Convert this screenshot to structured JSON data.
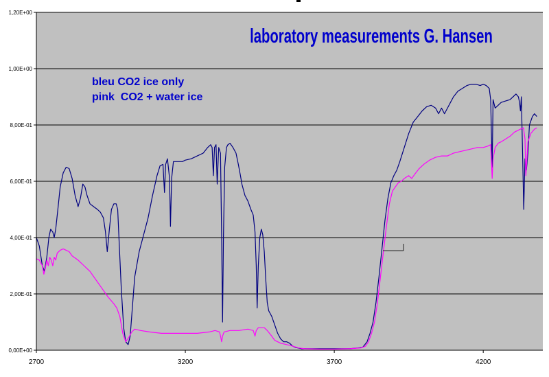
{
  "chart_data": {
    "type": "line",
    "title": "laboratory measurements G. Hansen",
    "annotations": [
      "bleu CO2 ice only",
      "pink  CO2 + water ice"
    ],
    "xlabel": "",
    "ylabel": "",
    "xlim": [
      2700,
      4400
    ],
    "ylim": [
      0,
      1.2
    ],
    "x_ticks": [
      "2700",
      "3200",
      "3700",
      "4200"
    ],
    "x_tick_values": [
      2700,
      3200,
      3700,
      4200
    ],
    "y_ticks": [
      "0,00E+00",
      "2,00E-01",
      "4,00E-01",
      "6,00E-01",
      "8,00E-01",
      "1,00E+00",
      "1,20E+00"
    ],
    "y_tick_values": [
      0,
      0.2,
      0.4,
      0.6,
      0.8,
      1.0,
      1.2
    ],
    "grid": "horizontal",
    "plot_background": "#c0c0c0",
    "series": [
      {
        "color": "#000080",
        "points": [
          [
            2700,
            0.4
          ],
          [
            2710,
            0.37
          ],
          [
            2720,
            0.3
          ],
          [
            2727,
            0.28
          ],
          [
            2735,
            0.33
          ],
          [
            2742,
            0.4
          ],
          [
            2748,
            0.43
          ],
          [
            2755,
            0.42
          ],
          [
            2760,
            0.4
          ],
          [
            2765,
            0.43
          ],
          [
            2772,
            0.5
          ],
          [
            2780,
            0.58
          ],
          [
            2790,
            0.63
          ],
          [
            2800,
            0.65
          ],
          [
            2810,
            0.645
          ],
          [
            2820,
            0.61
          ],
          [
            2830,
            0.55
          ],
          [
            2840,
            0.51
          ],
          [
            2848,
            0.54
          ],
          [
            2856,
            0.59
          ],
          [
            2863,
            0.58
          ],
          [
            2870,
            0.55
          ],
          [
            2880,
            0.52
          ],
          [
            2892,
            0.51
          ],
          [
            2905,
            0.5
          ],
          [
            2915,
            0.49
          ],
          [
            2925,
            0.47
          ],
          [
            2932,
            0.42
          ],
          [
            2938,
            0.35
          ],
          [
            2945,
            0.43
          ],
          [
            2952,
            0.5
          ],
          [
            2960,
            0.52
          ],
          [
            2968,
            0.52
          ],
          [
            2973,
            0.5
          ],
          [
            2978,
            0.38
          ],
          [
            2985,
            0.22
          ],
          [
            2993,
            0.08
          ],
          [
            3000,
            0.03
          ],
          [
            3008,
            0.02
          ],
          [
            3015,
            0.05
          ],
          [
            3020,
            0.12
          ],
          [
            3030,
            0.26
          ],
          [
            3045,
            0.35
          ],
          [
            3060,
            0.41
          ],
          [
            3075,
            0.47
          ],
          [
            3090,
            0.55
          ],
          [
            3105,
            0.62
          ],
          [
            3115,
            0.655
          ],
          [
            3125,
            0.66
          ],
          [
            3130,
            0.56
          ],
          [
            3134,
            0.66
          ],
          [
            3140,
            0.68
          ],
          [
            3147,
            0.61
          ],
          [
            3150,
            0.44
          ],
          [
            3154,
            0.61
          ],
          [
            3160,
            0.67
          ],
          [
            3175,
            0.67
          ],
          [
            3190,
            0.67
          ],
          [
            3200,
            0.675
          ],
          [
            3220,
            0.68
          ],
          [
            3240,
            0.69
          ],
          [
            3260,
            0.7
          ],
          [
            3275,
            0.72
          ],
          [
            3285,
            0.73
          ],
          [
            3290,
            0.72
          ],
          [
            3294,
            0.62
          ],
          [
            3298,
            0.72
          ],
          [
            3303,
            0.73
          ],
          [
            3307,
            0.59
          ],
          [
            3312,
            0.72
          ],
          [
            3318,
            0.7
          ],
          [
            3322,
            0.4
          ],
          [
            3325,
            0.1
          ],
          [
            3328,
            0.4
          ],
          [
            3332,
            0.65
          ],
          [
            3338,
            0.72
          ],
          [
            3343,
            0.73
          ],
          [
            3350,
            0.735
          ],
          [
            3360,
            0.72
          ],
          [
            3370,
            0.7
          ],
          [
            3378,
            0.66
          ],
          [
            3385,
            0.62
          ],
          [
            3390,
            0.59
          ],
          [
            3400,
            0.55
          ],
          [
            3410,
            0.53
          ],
          [
            3420,
            0.5
          ],
          [
            3428,
            0.48
          ],
          [
            3434,
            0.42
          ],
          [
            3438,
            0.3
          ],
          [
            3441,
            0.15
          ],
          [
            3445,
            0.3
          ],
          [
            3450,
            0.4
          ],
          [
            3455,
            0.43
          ],
          [
            3460,
            0.41
          ],
          [
            3465,
            0.35
          ],
          [
            3470,
            0.25
          ],
          [
            3475,
            0.17
          ],
          [
            3480,
            0.14
          ],
          [
            3490,
            0.12
          ],
          [
            3500,
            0.09
          ],
          [
            3510,
            0.06
          ],
          [
            3520,
            0.04
          ],
          [
            3530,
            0.03
          ],
          [
            3540,
            0.03
          ],
          [
            3550,
            0.025
          ],
          [
            3560,
            0.015
          ],
          [
            3570,
            0.01
          ],
          [
            3590,
            0.005
          ],
          [
            3650,
            0.005
          ],
          [
            3700,
            0.005
          ],
          [
            3750,
            0.005
          ],
          [
            3780,
            0.008
          ],
          [
            3795,
            0.01
          ],
          [
            3810,
            0.03
          ],
          [
            3820,
            0.06
          ],
          [
            3830,
            0.1
          ],
          [
            3840,
            0.17
          ],
          [
            3850,
            0.26
          ],
          [
            3860,
            0.36
          ],
          [
            3870,
            0.46
          ],
          [
            3880,
            0.54
          ],
          [
            3890,
            0.595
          ],
          [
            3900,
            0.62
          ],
          [
            3910,
            0.64
          ],
          [
            3920,
            0.67
          ],
          [
            3935,
            0.72
          ],
          [
            3950,
            0.77
          ],
          [
            3965,
            0.81
          ],
          [
            3980,
            0.83
          ],
          [
            3995,
            0.85
          ],
          [
            4010,
            0.865
          ],
          [
            4025,
            0.87
          ],
          [
            4040,
            0.86
          ],
          [
            4050,
            0.84
          ],
          [
            4060,
            0.86
          ],
          [
            4070,
            0.84
          ],
          [
            4080,
            0.86
          ],
          [
            4090,
            0.88
          ],
          [
            4100,
            0.9
          ],
          [
            4115,
            0.92
          ],
          [
            4130,
            0.93
          ],
          [
            4145,
            0.94
          ],
          [
            4160,
            0.945
          ],
          [
            4175,
            0.945
          ],
          [
            4190,
            0.94
          ],
          [
            4200,
            0.945
          ],
          [
            4210,
            0.94
          ],
          [
            4220,
            0.93
          ],
          [
            4225,
            0.89
          ],
          [
            4230,
            0.65
          ],
          [
            4233,
            0.89
          ],
          [
            4240,
            0.86
          ],
          [
            4250,
            0.87
          ],
          [
            4260,
            0.88
          ],
          [
            4275,
            0.885
          ],
          [
            4290,
            0.89
          ],
          [
            4300,
            0.9
          ],
          [
            4310,
            0.91
          ],
          [
            4318,
            0.9
          ],
          [
            4322,
            0.88
          ],
          [
            4325,
            0.85
          ],
          [
            4328,
            0.9
          ],
          [
            4332,
            0.7
          ],
          [
            4336,
            0.5
          ],
          [
            4340,
            0.68
          ],
          [
            4345,
            0.64
          ],
          [
            4350,
            0.7
          ],
          [
            4355,
            0.8
          ],
          [
            4365,
            0.83
          ],
          [
            4372,
            0.84
          ],
          [
            4380,
            0.83
          ]
        ]
      },
      {
        "color": "#ff00ff",
        "points": [
          [
            2700,
            0.325
          ],
          [
            2710,
            0.32
          ],
          [
            2720,
            0.3
          ],
          [
            2725,
            0.27
          ],
          [
            2730,
            0.29
          ],
          [
            2735,
            0.32
          ],
          [
            2740,
            0.3
          ],
          [
            2745,
            0.33
          ],
          [
            2750,
            0.32
          ],
          [
            2755,
            0.3
          ],
          [
            2760,
            0.33
          ],
          [
            2765,
            0.32
          ],
          [
            2770,
            0.345
          ],
          [
            2780,
            0.355
          ],
          [
            2790,
            0.36
          ],
          [
            2800,
            0.355
          ],
          [
            2810,
            0.35
          ],
          [
            2820,
            0.335
          ],
          [
            2840,
            0.32
          ],
          [
            2860,
            0.3
          ],
          [
            2880,
            0.28
          ],
          [
            2900,
            0.25
          ],
          [
            2920,
            0.22
          ],
          [
            2940,
            0.19
          ],
          [
            2960,
            0.165
          ],
          [
            2970,
            0.15
          ],
          [
            2980,
            0.12
          ],
          [
            2990,
            0.06
          ],
          [
            3000,
            0.03
          ],
          [
            3010,
            0.045
          ],
          [
            3020,
            0.065
          ],
          [
            3030,
            0.075
          ],
          [
            3050,
            0.07
          ],
          [
            3080,
            0.065
          ],
          [
            3120,
            0.06
          ],
          [
            3160,
            0.06
          ],
          [
            3200,
            0.06
          ],
          [
            3240,
            0.06
          ],
          [
            3280,
            0.065
          ],
          [
            3300,
            0.07
          ],
          [
            3315,
            0.065
          ],
          [
            3320,
            0.04
          ],
          [
            3322,
            0.03
          ],
          [
            3325,
            0.05
          ],
          [
            3330,
            0.065
          ],
          [
            3350,
            0.07
          ],
          [
            3380,
            0.07
          ],
          [
            3410,
            0.075
          ],
          [
            3428,
            0.07
          ],
          [
            3434,
            0.05
          ],
          [
            3438,
            0.07
          ],
          [
            3445,
            0.08
          ],
          [
            3455,
            0.08
          ],
          [
            3465,
            0.08
          ],
          [
            3475,
            0.07
          ],
          [
            3490,
            0.05
          ],
          [
            3500,
            0.035
          ],
          [
            3510,
            0.03
          ],
          [
            3520,
            0.025
          ],
          [
            3540,
            0.02
          ],
          [
            3560,
            0.015
          ],
          [
            3580,
            0.008
          ],
          [
            3600,
            0.005
          ],
          [
            3650,
            0.004
          ],
          [
            3700,
            0.004
          ],
          [
            3750,
            0.005
          ],
          [
            3790,
            0.008
          ],
          [
            3805,
            0.015
          ],
          [
            3815,
            0.03
          ],
          [
            3825,
            0.06
          ],
          [
            3835,
            0.1
          ],
          [
            3845,
            0.17
          ],
          [
            3855,
            0.26
          ],
          [
            3865,
            0.35
          ],
          [
            3875,
            0.44
          ],
          [
            3885,
            0.52
          ],
          [
            3895,
            0.565
          ],
          [
            3905,
            0.58
          ],
          [
            3915,
            0.595
          ],
          [
            3925,
            0.6
          ],
          [
            3935,
            0.61
          ],
          [
            3950,
            0.62
          ],
          [
            3960,
            0.61
          ],
          [
            3970,
            0.625
          ],
          [
            3985,
            0.645
          ],
          [
            4000,
            0.66
          ],
          [
            4020,
            0.675
          ],
          [
            4040,
            0.685
          ],
          [
            4060,
            0.69
          ],
          [
            4080,
            0.69
          ],
          [
            4100,
            0.7
          ],
          [
            4120,
            0.705
          ],
          [
            4140,
            0.71
          ],
          [
            4160,
            0.715
          ],
          [
            4180,
            0.72
          ],
          [
            4200,
            0.72
          ],
          [
            4215,
            0.725
          ],
          [
            4225,
            0.73
          ],
          [
            4228,
            0.66
          ],
          [
            4230,
            0.61
          ],
          [
            4233,
            0.68
          ],
          [
            4240,
            0.72
          ],
          [
            4250,
            0.735
          ],
          [
            4260,
            0.74
          ],
          [
            4275,
            0.75
          ],
          [
            4290,
            0.76
          ],
          [
            4305,
            0.775
          ],
          [
            4315,
            0.78
          ],
          [
            4325,
            0.785
          ],
          [
            4335,
            0.79
          ],
          [
            4340,
            0.75
          ],
          [
            4343,
            0.62
          ],
          [
            4346,
            0.67
          ],
          [
            4350,
            0.74
          ],
          [
            4360,
            0.77
          ],
          [
            4372,
            0.785
          ],
          [
            4380,
            0.79
          ]
        ]
      }
    ]
  }
}
